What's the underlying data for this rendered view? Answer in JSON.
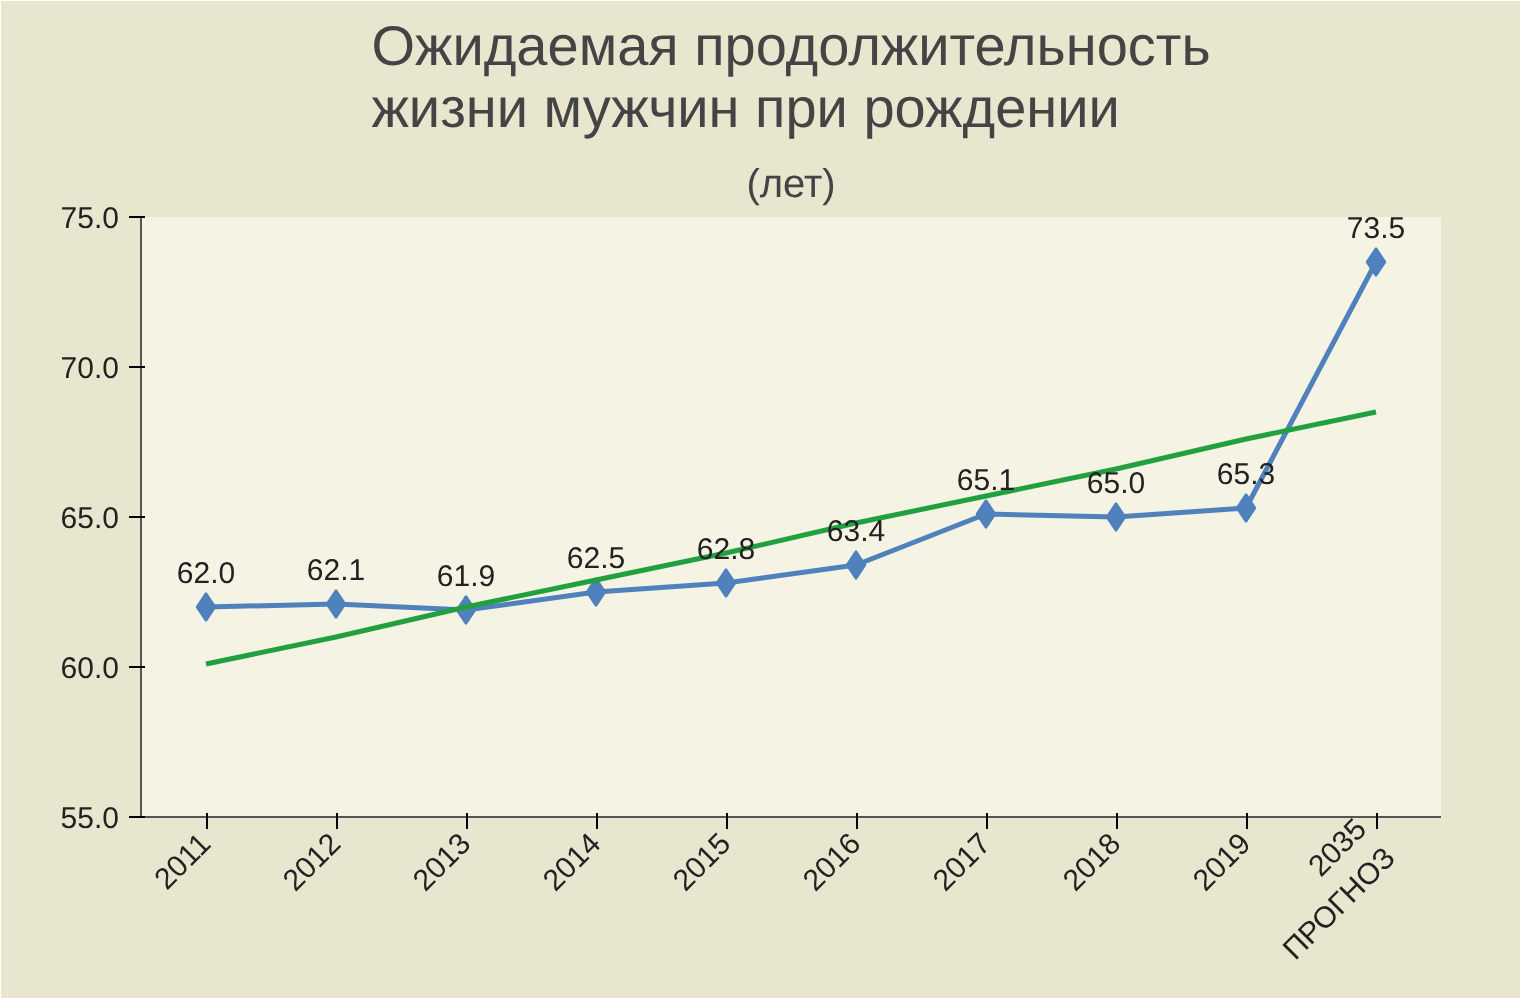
{
  "chart_data": {
    "type": "line",
    "title": "Ожидаемая продолжительность\nжизни мужчин при рождении",
    "subtitle": "(лет)",
    "categories": [
      "2011",
      "2012",
      "2013",
      "2014",
      "2015",
      "2016",
      "2017",
      "2018",
      "2019",
      "2035\nПРОГНОЗ"
    ],
    "series": [
      {
        "color": "#4f81bd",
        "values": [
          62.0,
          62.1,
          61.9,
          62.5,
          62.8,
          63.4,
          65.1,
          65.0,
          65.3,
          73.5
        ],
        "marker": "diamond",
        "value_labels": [
          "62.0",
          "62.1",
          "61.9",
          "62.5",
          "62.8",
          "63.4",
          "65.1",
          "65.0",
          "65.3",
          "73.5"
        ]
      },
      {
        "type": "line",
        "color": "#22a040",
        "values": [
          60.1,
          61.0,
          62.0,
          62.9,
          63.8,
          64.8,
          65.7,
          66.6,
          67.6,
          68.5
        ],
        "marker": "none"
      }
    ],
    "ylim": [
      55.0,
      75.0
    ],
    "yticks": [
      {
        "value": 55,
        "label": "55.0"
      },
      {
        "value": 60,
        "label": "60.0"
      },
      {
        "value": 65,
        "label": "65.0"
      },
      {
        "value": 70,
        "label": "70.0"
      },
      {
        "value": 75,
        "label": "75.0"
      }
    ],
    "grid": false
  }
}
